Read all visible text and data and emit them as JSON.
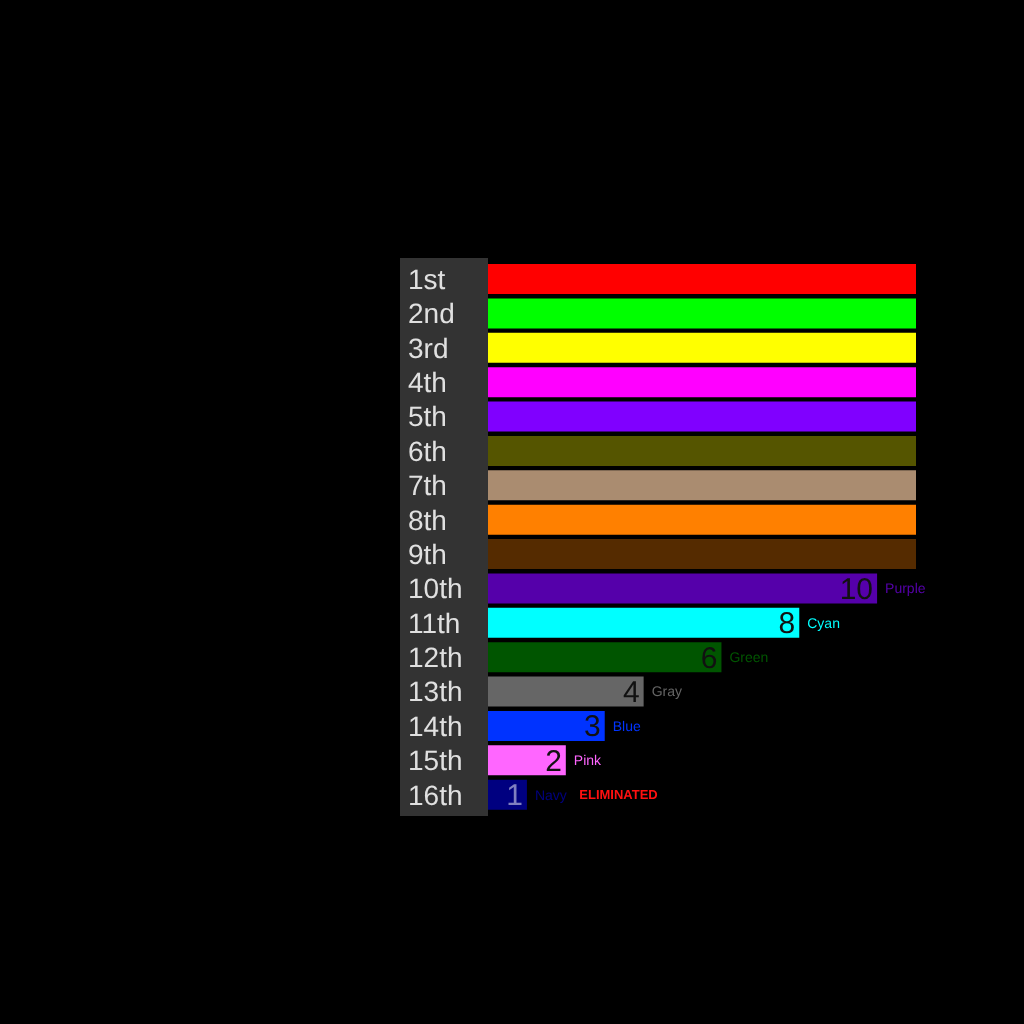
{
  "chart_data": {
    "type": "bar",
    "orientation": "horizontal",
    "categories": [
      "1st",
      "2nd",
      "3rd",
      "4th",
      "5th",
      "6th",
      "7th",
      "8th",
      "9th",
      "10th",
      "11th",
      "12th",
      "13th",
      "14th",
      "15th",
      "16th"
    ],
    "values": [
      11,
      11,
      11,
      11,
      11,
      11,
      11,
      11,
      11,
      10,
      8,
      6,
      4,
      3,
      2,
      1
    ],
    "colors": [
      "#ff0000",
      "#00ff00",
      "#ffff00",
      "#ff00ff",
      "#8000ff",
      "#555500",
      "#aa8c70",
      "#ff8000",
      "#552b00",
      "#5500aa",
      "#00ffff",
      "#005500",
      "#666666",
      "#0033ff",
      "#ff66ff",
      "#000080"
    ],
    "value_labels": [
      null,
      null,
      null,
      null,
      null,
      null,
      null,
      null,
      null,
      "10",
      "8",
      "6",
      "4",
      "3",
      "2",
      "1"
    ],
    "annotations": [
      {
        "text": "Purple",
        "x": 10,
        "y": "10th"
      },
      {
        "text": "Cyan",
        "x": 8,
        "y": "11th"
      },
      {
        "text": "Green",
        "x": 6,
        "y": "12th"
      },
      {
        "text": "Gray",
        "x": 4,
        "y": "13th"
      },
      {
        "text": "Blue",
        "x": 3,
        "y": "14th"
      },
      {
        "text": "Pink",
        "x": 2,
        "y": "15th"
      },
      {
        "text": "Navy",
        "x": 1,
        "y": "16th"
      },
      "ELIMINATED"
    ],
    "tick_labels": "y"
  }
}
